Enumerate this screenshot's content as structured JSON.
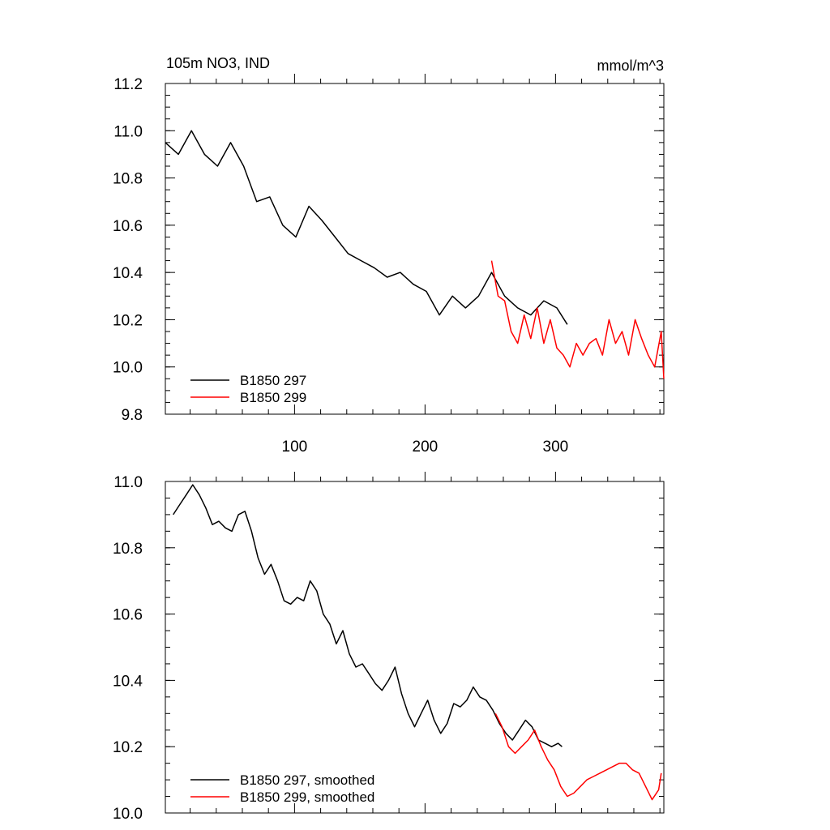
{
  "chart_data": [
    {
      "type": "line",
      "title_left": "105m NO3, IND",
      "title_right": "mmol/m^3",
      "xlim": [
        1,
        383
      ],
      "ylim": [
        9.8,
        11.2
      ],
      "yticks": [
        9.8,
        10.0,
        10.2,
        10.4,
        10.6,
        10.8,
        11.0,
        11.2
      ],
      "yticklabels": [
        "9.8",
        "10.0",
        "10.2",
        "10.4",
        "10.6",
        "10.8",
        "11.0",
        "11.2"
      ],
      "xticks": [
        100,
        200,
        300
      ],
      "xticklabels": [
        "100",
        "200",
        "300"
      ],
      "legend_position": "lower-left",
      "series": [
        {
          "name": "B1850 297",
          "color": "#000000",
          "x": [
            1,
            11,
            21,
            31,
            41,
            51,
            61,
            71,
            81,
            91,
            101,
            111,
            121,
            131,
            141,
            151,
            161,
            171,
            181,
            191,
            201,
            211,
            221,
            231,
            241,
            251,
            261,
            271,
            281,
            291,
            301,
            309
          ],
          "values": [
            10.95,
            10.9,
            11.0,
            10.9,
            10.85,
            10.95,
            10.85,
            10.7,
            10.72,
            10.6,
            10.55,
            10.68,
            10.62,
            10.55,
            10.48,
            10.45,
            10.42,
            10.38,
            10.4,
            10.35,
            10.32,
            10.22,
            10.3,
            10.25,
            10.3,
            10.4,
            10.3,
            10.25,
            10.22,
            10.28,
            10.25,
            10.18
          ]
        },
        {
          "name": "B1850 299",
          "color": "#ff0000",
          "x": [
            251,
            256,
            261,
            266,
            271,
            276,
            281,
            286,
            291,
            296,
            301,
            306,
            311,
            316,
            321,
            326,
            331,
            336,
            341,
            346,
            351,
            356,
            361,
            366,
            371,
            376,
            381,
            383
          ],
          "values": [
            10.45,
            10.3,
            10.28,
            10.15,
            10.1,
            10.22,
            10.12,
            10.25,
            10.1,
            10.2,
            10.08,
            10.05,
            10.0,
            10.1,
            10.05,
            10.1,
            10.12,
            10.05,
            10.2,
            10.1,
            10.15,
            10.05,
            10.2,
            10.12,
            10.05,
            10.0,
            10.15,
            9.95
          ]
        }
      ]
    },
    {
      "type": "line",
      "xlim": [
        1,
        383
      ],
      "ylim": [
        10.0,
        11.0
      ],
      "yticks": [
        10.0,
        10.2,
        10.4,
        10.6,
        10.8,
        11.0
      ],
      "yticklabels": [
        "10.0",
        "10.2",
        "10.4",
        "10.6",
        "10.8",
        "11.0"
      ],
      "legend_position": "lower-left",
      "series": [
        {
          "name": "B1850 297, smoothed",
          "color": "#000000",
          "x": [
            7,
            12,
            17,
            22,
            27,
            32,
            37,
            42,
            47,
            52,
            57,
            62,
            67,
            72,
            77,
            82,
            87,
            92,
            97,
            102,
            107,
            112,
            117,
            122,
            127,
            132,
            137,
            142,
            147,
            152,
            157,
            162,
            167,
            172,
            177,
            182,
            187,
            192,
            197,
            202,
            207,
            212,
            217,
            222,
            227,
            232,
            237,
            242,
            247,
            252,
            257,
            262,
            267,
            272,
            277,
            282,
            287,
            292,
            297,
            302,
            305
          ],
          "values": [
            10.9,
            10.93,
            10.96,
            10.99,
            10.96,
            10.92,
            10.87,
            10.88,
            10.86,
            10.85,
            10.9,
            10.91,
            10.85,
            10.77,
            10.72,
            10.75,
            10.7,
            10.64,
            10.63,
            10.65,
            10.64,
            10.7,
            10.67,
            10.6,
            10.57,
            10.51,
            10.55,
            10.48,
            10.44,
            10.45,
            10.42,
            10.39,
            10.37,
            10.4,
            10.44,
            10.36,
            10.3,
            10.26,
            10.3,
            10.34,
            10.28,
            10.24,
            10.27,
            10.33,
            10.32,
            10.34,
            10.38,
            10.35,
            10.34,
            10.31,
            10.27,
            10.24,
            10.22,
            10.25,
            10.28,
            10.26,
            10.22,
            10.21,
            10.2,
            10.21,
            10.2
          ]
        },
        {
          "name": "B1850 299, smoothed",
          "color": "#ff0000",
          "x": [
            254,
            259,
            264,
            269,
            274,
            279,
            284,
            289,
            294,
            299,
            304,
            309,
            314,
            319,
            324,
            329,
            334,
            339,
            344,
            349,
            354,
            359,
            364,
            369,
            374,
            379,
            381
          ],
          "values": [
            10.3,
            10.26,
            10.2,
            10.18,
            10.2,
            10.22,
            10.25,
            10.2,
            10.16,
            10.13,
            10.08,
            10.05,
            10.06,
            10.08,
            10.1,
            10.11,
            10.12,
            10.13,
            10.14,
            10.15,
            10.15,
            10.13,
            10.12,
            10.08,
            10.04,
            10.07,
            10.12
          ]
        }
      ]
    }
  ]
}
